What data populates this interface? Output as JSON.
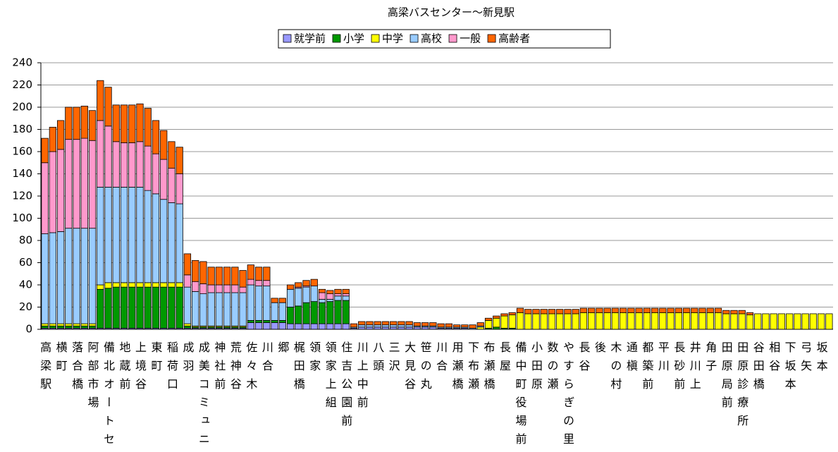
{
  "chart_data": {
    "type": "stacked_bar",
    "title": "高梁バスセンター～新見駅",
    "categories": [
      "高梁駅",
      null,
      "横町",
      null,
      "落合橋",
      null,
      "阿部市場",
      null,
      "備北オートセ",
      null,
      "地蔵前",
      null,
      "上境谷",
      null,
      "東町",
      null,
      "稲荷口",
      null,
      "成羽",
      null,
      "成美コミュニ",
      null,
      "神社前",
      null,
      "荒神谷",
      null,
      "佐々木",
      null,
      "川合",
      null,
      "郷",
      null,
      "梶田橋",
      null,
      "領家",
      null,
      "領家上組",
      null,
      "住吉公園前",
      null,
      "川上中前",
      null,
      "八頭",
      null,
      "三沢",
      null,
      "大見谷",
      null,
      "笹の丸",
      null,
      "川合",
      null,
      "用瀬橋",
      null,
      "下布瀬",
      null,
      "布瀬橋",
      null,
      "長屋",
      null,
      "備中町役場前",
      null,
      "小田原",
      null,
      "数の瀬",
      null,
      "やすらぎの里",
      null,
      "長谷",
      null,
      "後",
      null,
      "木の村",
      null,
      "通槇",
      null,
      "都築前",
      null,
      "平川",
      null,
      "長砂前",
      null,
      "井川上",
      null,
      "角子",
      null,
      "田原局前",
      null,
      "田原診療所",
      null,
      "谷田橋",
      null,
      "相谷",
      null,
      "下坂本",
      null,
      "弓矢",
      null,
      "坂本",
      null
    ],
    "series": [
      {
        "name": "就学前",
        "color": "#9999ff",
        "values": [
          1,
          1,
          1,
          1,
          1,
          1,
          1,
          1,
          1,
          1,
          1,
          1,
          1,
          1,
          1,
          1,
          1,
          1,
          1,
          1,
          1,
          1,
          1,
          1,
          1,
          1,
          6,
          6,
          6,
          6,
          6,
          5,
          5,
          5,
          5,
          5,
          5,
          5,
          5,
          1,
          2,
          2,
          2,
          2,
          2,
          2,
          2,
          2,
          2,
          2,
          1,
          1,
          1,
          1,
          0,
          0,
          0,
          0,
          0,
          0,
          0,
          0,
          0,
          0,
          0,
          0,
          0,
          0,
          0,
          0,
          0,
          0,
          0,
          0,
          0,
          0,
          0,
          0,
          0,
          0,
          0,
          0,
          0,
          0,
          0,
          0,
          0,
          0,
          0,
          0,
          0,
          0,
          0,
          0,
          0,
          0,
          0,
          0,
          0,
          0
        ]
      },
      {
        "name": "小学",
        "color": "#009900",
        "values": [
          2,
          2,
          2,
          2,
          2,
          2,
          2,
          35,
          36,
          37,
          37,
          37,
          37,
          37,
          37,
          37,
          37,
          37,
          2,
          1,
          1,
          1,
          1,
          1,
          1,
          1,
          2,
          2,
          2,
          2,
          2,
          15,
          16,
          19,
          20,
          19,
          20,
          21,
          21,
          0,
          0,
          0,
          0,
          0,
          0,
          0,
          0,
          0,
          0,
          0,
          0,
          0,
          0,
          0,
          0,
          0,
          1,
          2,
          1,
          1,
          0,
          0,
          0,
          0,
          0,
          0,
          0,
          0,
          0,
          0,
          0,
          0,
          0,
          0,
          0,
          0,
          0,
          0,
          0,
          0,
          0,
          0,
          0,
          0,
          0,
          0,
          0,
          0,
          0,
          0,
          0,
          0,
          0,
          0,
          0,
          0,
          0,
          0,
          0,
          0
        ]
      },
      {
        "name": "中学",
        "color": "#ffff00",
        "values": [
          2,
          2,
          2,
          2,
          2,
          2,
          2,
          4,
          5,
          4,
          4,
          4,
          4,
          4,
          4,
          4,
          4,
          4,
          2,
          1,
          1,
          1,
          1,
          1,
          1,
          1,
          0,
          0,
          0,
          0,
          0,
          0,
          0,
          0,
          0,
          0,
          0,
          0,
          0,
          0,
          0,
          0,
          0,
          0,
          0,
          0,
          0,
          0,
          0,
          0,
          0,
          0,
          0,
          0,
          0,
          2,
          7,
          8,
          11,
          12,
          15,
          14,
          14,
          14,
          14,
          14,
          14,
          14,
          15,
          15,
          15,
          15,
          15,
          15,
          15,
          15,
          15,
          15,
          15,
          15,
          15,
          15,
          15,
          15,
          15,
          15,
          14,
          14,
          14,
          13,
          14,
          14,
          14,
          14,
          14,
          14,
          14,
          14,
          14,
          14
        ]
      },
      {
        "name": "高校",
        "color": "#99ccff",
        "values": [
          81,
          82,
          83,
          86,
          86,
          86,
          86,
          88,
          86,
          86,
          86,
          86,
          86,
          83,
          80,
          75,
          72,
          71,
          33,
          31,
          29,
          30,
          30,
          30,
          30,
          30,
          32,
          31,
          31,
          16,
          16,
          16,
          16,
          14,
          14,
          3,
          2,
          4,
          4,
          1,
          2,
          2,
          2,
          2,
          2,
          2,
          2,
          1,
          1,
          1,
          1,
          1,
          1,
          1,
          1,
          1,
          0,
          0,
          0,
          0,
          0,
          0,
          0,
          0,
          0,
          0,
          0,
          0,
          0,
          0,
          0,
          0,
          0,
          0,
          0,
          0,
          0,
          0,
          0,
          0,
          0,
          0,
          0,
          0,
          0,
          0,
          0,
          0,
          0,
          0,
          0,
          0,
          0,
          0,
          0,
          0,
          0,
          0,
          0,
          0
        ]
      },
      {
        "name": "一般",
        "color": "#ff99cc",
        "values": [
          64,
          73,
          74,
          80,
          80,
          81,
          79,
          60,
          55,
          41,
          40,
          40,
          41,
          40,
          36,
          36,
          31,
          27,
          11,
          9,
          9,
          7,
          7,
          7,
          7,
          5,
          5,
          5,
          5,
          0,
          0,
          0,
          1,
          1,
          0,
          6,
          5,
          2,
          2,
          0,
          0,
          0,
          0,
          0,
          0,
          0,
          0,
          0,
          0,
          0,
          0,
          0,
          0,
          0,
          0,
          0,
          0,
          0,
          0,
          0,
          0,
          0,
          0,
          0,
          0,
          0,
          0,
          0,
          0,
          0,
          0,
          0,
          0,
          0,
          0,
          0,
          0,
          0,
          0,
          0,
          0,
          0,
          0,
          0,
          0,
          0,
          0,
          0,
          0,
          0,
          0,
          0,
          0,
          0,
          0,
          0,
          0,
          0,
          0,
          0
        ]
      },
      {
        "name": "高齢者",
        "color": "#ff6600",
        "values": [
          22,
          22,
          26,
          29,
          29,
          29,
          27,
          36,
          35,
          33,
          34,
          34,
          34,
          34,
          30,
          26,
          24,
          24,
          19,
          19,
          20,
          16,
          16,
          16,
          16,
          15,
          13,
          12,
          12,
          4,
          4,
          4,
          4,
          5,
          6,
          3,
          3,
          4,
          4,
          3,
          3,
          3,
          3,
          3,
          3,
          3,
          3,
          3,
          3,
          3,
          3,
          3,
          2,
          2,
          3,
          3,
          2,
          2,
          2,
          2,
          4,
          4,
          4,
          4,
          4,
          4,
          4,
          4,
          4,
          4,
          4,
          4,
          4,
          4,
          4,
          4,
          4,
          4,
          4,
          4,
          4,
          4,
          4,
          4,
          4,
          4,
          3,
          3,
          3,
          2,
          0,
          0,
          0,
          0,
          0,
          0,
          0,
          0,
          0,
          0
        ]
      }
    ],
    "ylim": [
      0,
      240
    ],
    "yticks": [
      0,
      20,
      40,
      60,
      80,
      100,
      120,
      140,
      160,
      180,
      200,
      220,
      240
    ],
    "grid": true,
    "legend": "top"
  }
}
